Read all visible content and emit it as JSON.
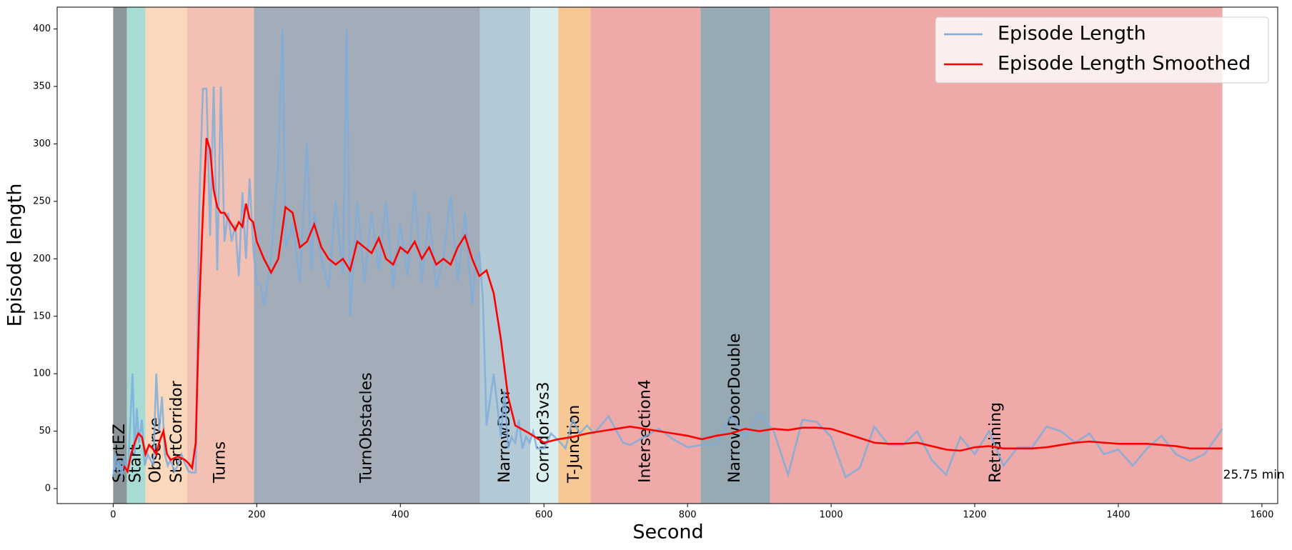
{
  "chart_data": {
    "type": "line",
    "xlabel": "Second",
    "ylabel": "Episode length",
    "xlim": [
      -78,
      1622
    ],
    "ylim": [
      -13,
      419
    ],
    "xticks": [
      0,
      200,
      400,
      600,
      800,
      1000,
      1200,
      1400,
      1600
    ],
    "yticks": [
      0,
      50,
      100,
      150,
      200,
      250,
      300,
      350,
      400
    ],
    "legend": "upper right",
    "annotation": "25.75 min",
    "regions": [
      {
        "label": "StartEZ",
        "start": 0,
        "end": 19,
        "color": "#8b969b"
      },
      {
        "label": "Start",
        "start": 19,
        "end": 45,
        "color": "#a6dcd4"
      },
      {
        "label": "Observe",
        "start": 45,
        "end": 75,
        "color": "#f9d8bc"
      },
      {
        "label": "StartCorridor",
        "start": 75,
        "end": 103,
        "color": "#f9d8bc"
      },
      {
        "label": "Turns",
        "start": 103,
        "end": 196,
        "color": "#f3c1b4"
      },
      {
        "label": "TurnObstacles",
        "start": 196,
        "end": 511,
        "color": "#a3adb9"
      },
      {
        "label": "NarrowDoor",
        "start": 511,
        "end": 581,
        "color": "#b4c9d6"
      },
      {
        "label": "Corridor3vs3",
        "start": 581,
        "end": 620,
        "color": "#daeef0"
      },
      {
        "label": "T-Junction",
        "start": 620,
        "end": 665,
        "color": "#f8c894"
      },
      {
        "label": "Intersection4",
        "start": 665,
        "end": 818,
        "color": "#eea9a8"
      },
      {
        "label": "NarrowDoorDouble",
        "start": 818,
        "end": 915,
        "color": "#97a9b3"
      },
      {
        "label": "Retraining",
        "start": 915,
        "end": 1545,
        "color": "#eea9a8"
      }
    ],
    "series": [
      {
        "name": "Episode Length",
        "color": "#7eaddc",
        "x": [
          0,
          3,
          6,
          9,
          12,
          15,
          18,
          21,
          24,
          27,
          30,
          33,
          36,
          40,
          44,
          48,
          52,
          56,
          60,
          64,
          68,
          72,
          76,
          80,
          85,
          90,
          95,
          100,
          105,
          110,
          115,
          120,
          125,
          130,
          135,
          140,
          145,
          150,
          155,
          160,
          165,
          170,
          175,
          180,
          185,
          190,
          195,
          200,
          205,
          210,
          220,
          230,
          236,
          240,
          250,
          260,
          270,
          276,
          280,
          290,
          300,
          310,
          320,
          325,
          330,
          340,
          350,
          360,
          370,
          380,
          390,
          400,
          410,
          420,
          430,
          440,
          450,
          460,
          470,
          480,
          490,
          500,
          505,
          510,
          515,
          520,
          530,
          540,
          545,
          550,
          555,
          560,
          565,
          570,
          575,
          580,
          585,
          590,
          600,
          610,
          620,
          630,
          640,
          650,
          660,
          670,
          690,
          710,
          720,
          740,
          760,
          780,
          800,
          820,
          840,
          860,
          880,
          900,
          920,
          940,
          960,
          980,
          1000,
          1020,
          1040,
          1060,
          1080,
          1100,
          1120,
          1140,
          1160,
          1180,
          1200,
          1220,
          1240,
          1260,
          1280,
          1300,
          1320,
          1340,
          1360,
          1380,
          1400,
          1420,
          1440,
          1460,
          1480,
          1500,
          1520,
          1545
        ],
        "values": [
          10,
          30,
          15,
          25,
          10,
          28,
          15,
          20,
          60,
          100,
          30,
          70,
          40,
          60,
          20,
          30,
          25,
          20,
          100,
          50,
          80,
          30,
          20,
          25,
          15,
          20,
          30,
          22,
          15,
          14,
          14,
          250,
          348,
          348,
          220,
          350,
          190,
          350,
          215,
          240,
          215,
          230,
          185,
          258,
          200,
          270,
          210,
          178,
          178,
          160,
          200,
          285,
          400,
          210,
          230,
          180,
          300,
          190,
          240,
          200,
          175,
          250,
          185,
          400,
          150,
          250,
          180,
          240,
          190,
          250,
          175,
          230,
          185,
          260,
          180,
          240,
          175,
          200,
          255,
          180,
          240,
          160,
          200,
          205,
          165,
          55,
          100,
          45,
          85,
          35,
          45,
          40,
          60,
          35,
          45,
          40,
          50,
          35,
          35,
          48,
          42,
          35,
          60,
          48,
          55,
          48,
          63,
          40,
          38,
          45,
          52,
          43,
          36,
          38,
          38,
          64,
          45,
          65,
          50,
          12,
          60,
          58,
          45,
          10,
          18,
          54,
          38,
          38,
          50,
          25,
          12,
          45,
          30,
          50,
          20,
          36,
          36,
          54,
          50,
          40,
          48,
          30,
          34,
          20,
          35,
          46,
          30,
          24,
          30,
          52
        ]
      },
      {
        "name": "Episode Length Smoothed",
        "color": "#ff0000",
        "x": [
          15,
          20,
          25,
          30,
          35,
          40,
          45,
          50,
          55,
          60,
          65,
          70,
          75,
          80,
          90,
          100,
          105,
          110,
          115,
          120,
          125,
          130,
          135,
          140,
          145,
          150,
          155,
          160,
          165,
          170,
          175,
          180,
          185,
          190,
          195,
          200,
          210,
          220,
          230,
          240,
          250,
          260,
          270,
          280,
          290,
          300,
          310,
          320,
          330,
          340,
          350,
          360,
          370,
          380,
          390,
          400,
          410,
          420,
          430,
          440,
          450,
          460,
          470,
          480,
          490,
          500,
          510,
          520,
          530,
          540,
          550,
          560,
          580,
          600,
          620,
          640,
          660,
          680,
          700,
          720,
          740,
          760,
          780,
          800,
          820,
          840,
          860,
          880,
          900,
          920,
          940,
          960,
          980,
          1000,
          1020,
          1040,
          1060,
          1080,
          1100,
          1120,
          1140,
          1160,
          1180,
          1200,
          1220,
          1240,
          1260,
          1280,
          1300,
          1320,
          1340,
          1360,
          1380,
          1400,
          1420,
          1440,
          1460,
          1480,
          1500,
          1520,
          1545
        ],
        "values": [
          20,
          15,
          30,
          40,
          48,
          45,
          30,
          38,
          35,
          30,
          42,
          50,
          30,
          25,
          28,
          25,
          22,
          18,
          40,
          160,
          240,
          305,
          295,
          260,
          245,
          240,
          240,
          235,
          230,
          225,
          232,
          228,
          248,
          235,
          232,
          215,
          200,
          188,
          200,
          245,
          240,
          210,
          215,
          230,
          210,
          200,
          195,
          200,
          190,
          215,
          210,
          205,
          218,
          200,
          195,
          210,
          205,
          215,
          200,
          210,
          195,
          200,
          195,
          210,
          220,
          200,
          185,
          190,
          170,
          130,
          80,
          55,
          48,
          40,
          43,
          45,
          48,
          50,
          52,
          54,
          52,
          50,
          48,
          46,
          43,
          46,
          48,
          52,
          50,
          52,
          51,
          53,
          53,
          52,
          48,
          44,
          40,
          39,
          39,
          40,
          37,
          34,
          33,
          36,
          37,
          35,
          35,
          35,
          36,
          38,
          40,
          41,
          40,
          39,
          39,
          39,
          38,
          37,
          35,
          35,
          35
        ]
      }
    ]
  }
}
